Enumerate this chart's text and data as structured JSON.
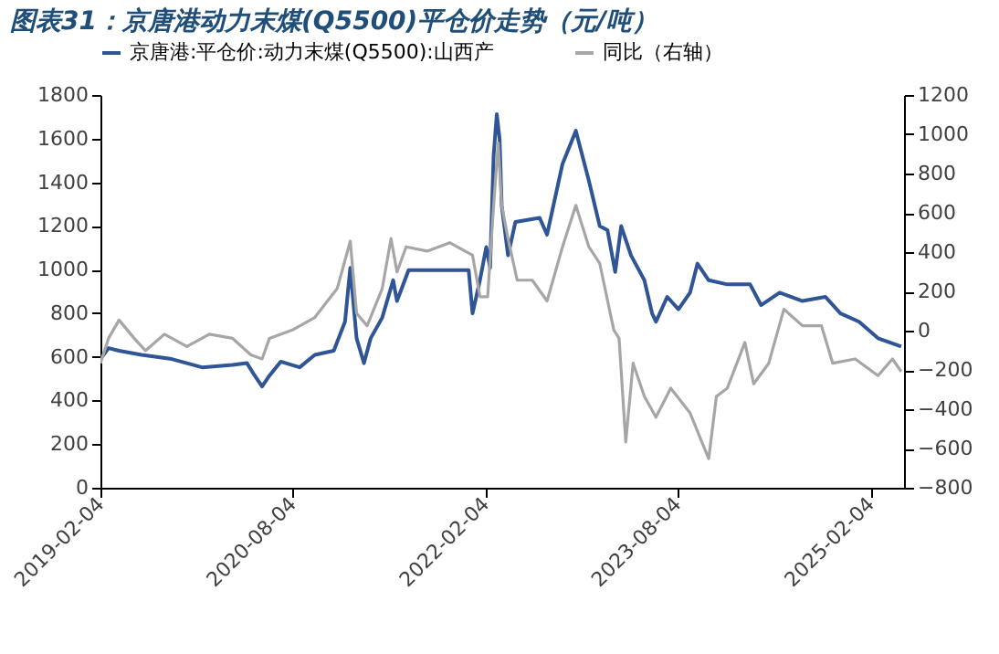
{
  "chart_data": {
    "type": "line",
    "title": "图表31：京唐港动力末煤(Q5500)平仓价走势（元/吨）",
    "xlim": [
      "2019-02-04",
      "2025-05-10"
    ],
    "xticks": [
      "2019-02-04",
      "2020-08-04",
      "2022-02-04",
      "2023-08-04",
      "2025-02-04"
    ],
    "ylim": [
      0,
      1800
    ],
    "yticks": [
      0,
      200,
      400,
      600,
      800,
      1000,
      1200,
      1400,
      1600,
      1800
    ],
    "y2lim": [
      -800,
      1200
    ],
    "y2ticks": [
      -800,
      -600,
      -400,
      -200,
      0,
      200,
      400,
      600,
      800,
      1000,
      1200
    ],
    "legend": "top",
    "grid": false,
    "marker": "none",
    "line_style": "solid",
    "series": [
      {
        "name": "京唐港:平仓价:动力末煤(Q5500):山西产",
        "color": "#2f5597",
        "x": [
          "2019-02-04",
          "2019-02-27",
          "2019-03-29",
          "2019-06-01",
          "2019-08-26",
          "2019-11-20",
          "2020-02-15",
          "2020-03-27",
          "2020-04-18",
          "2020-05-09",
          "2020-05-30",
          "2020-07-01",
          "2020-08-24",
          "2020-10-06",
          "2020-11-29",
          "2020-12-31",
          "2021-01-15",
          "2021-02-02",
          "2021-02-23",
          "2021-03-14",
          "2021-04-16",
          "2021-05-17",
          "2021-05-28",
          "2021-06-30",
          "2021-08-22",
          "2021-12-18",
          "2021-12-29",
          "2022-01-19",
          "2022-02-06",
          "2022-02-17",
          "2022-02-27",
          "2022-03-08",
          "2022-03-16",
          "2022-03-22",
          "2022-04-09",
          "2022-04-30",
          "2022-07-08",
          "2022-07-29",
          "2022-09-11",
          "2022-10-19",
          "2022-11-25",
          "2022-12-26",
          "2023-01-17",
          "2023-02-08",
          "2023-02-25",
          "2023-03-25",
          "2023-05-02",
          "2023-05-24",
          "2023-06-04",
          "2023-07-06",
          "2023-08-07",
          "2023-09-09",
          "2023-09-30",
          "2023-11-01",
          "2023-12-24",
          "2024-02-27",
          "2024-03-29",
          "2024-05-21",
          "2024-07-25",
          "2024-09-28",
          "2024-11-10",
          "2025-01-02",
          "2025-02-25",
          "2025-05-02"
        ],
        "values": [
          590,
          640,
          628,
          609,
          590,
          552,
          563,
          571,
          514,
          464,
          514,
          578,
          552,
          609,
          628,
          761,
          1008,
          685,
          571,
          685,
          780,
          951,
          856,
          997,
          997,
          997,
          799,
          951,
          1103,
          1008,
          1522,
          1712,
          1598,
          1294,
          1065,
          1218,
          1237,
          1160,
          1484,
          1636,
          1408,
          1199,
          1180,
          989,
          1199,
          1065,
          951,
          799,
          761,
          875,
          818,
          894,
          1027,
          951,
          932,
          932,
          837,
          894,
          856,
          875,
          799,
          761,
          685,
          647
        ]
      },
      {
        "name": "同比（右轴）",
        "color": "#a6a6a6",
        "axis": "y2",
        "x": [
          "2019-02-04",
          "2019-02-27",
          "2019-03-29",
          "2019-05-11",
          "2019-06-12",
          "2019-08-05",
          "2019-10-08",
          "2019-12-11",
          "2020-02-15",
          "2020-04-07",
          "2020-05-09",
          "2020-05-30",
          "2020-08-03",
          "2020-10-06",
          "2020-12-09",
          "2021-01-15",
          "2021-02-02",
          "2021-03-04",
          "2021-04-16",
          "2021-05-11",
          "2021-05-28",
          "2021-06-23",
          "2021-08-22",
          "2021-10-25",
          "2021-12-29",
          "2022-01-19",
          "2022-02-10",
          "2022-02-27",
          "2022-03-12",
          "2022-03-22",
          "2022-04-09",
          "2022-05-05",
          "2022-06-17",
          "2022-07-29",
          "2022-09-11",
          "2022-10-19",
          "2022-11-25",
          "2022-12-26",
          "2023-02-04",
          "2023-02-19",
          "2023-03-10",
          "2023-03-31",
          "2023-05-02",
          "2023-06-04",
          "2023-07-16",
          "2023-09-09",
          "2023-11-01",
          "2023-11-23",
          "2023-12-24",
          "2024-02-12",
          "2024-03-08",
          "2024-04-20",
          "2024-06-02",
          "2024-07-25",
          "2024-09-17",
          "2024-10-19",
          "2024-12-22",
          "2025-02-25",
          "2025-04-07",
          "2025-05-02"
        ],
        "values": [
          -166,
          -39,
          54,
          -39,
          -102,
          -18,
          -81,
          -18,
          -39,
          -123,
          -144,
          -39,
          3,
          67,
          215,
          456,
          88,
          25,
          215,
          469,
          299,
          427,
          405,
          448,
          384,
          173,
          173,
          638,
          955,
          638,
          469,
          257,
          257,
          151,
          427,
          638,
          427,
          342,
          3,
          -39,
          -567,
          -166,
          -335,
          -441,
          -293,
          -419,
          -652,
          -335,
          -293,
          -60,
          -271,
          -166,
          109,
          25,
          25,
          -166,
          -144,
          -229,
          -144,
          -208
        ]
      }
    ]
  }
}
